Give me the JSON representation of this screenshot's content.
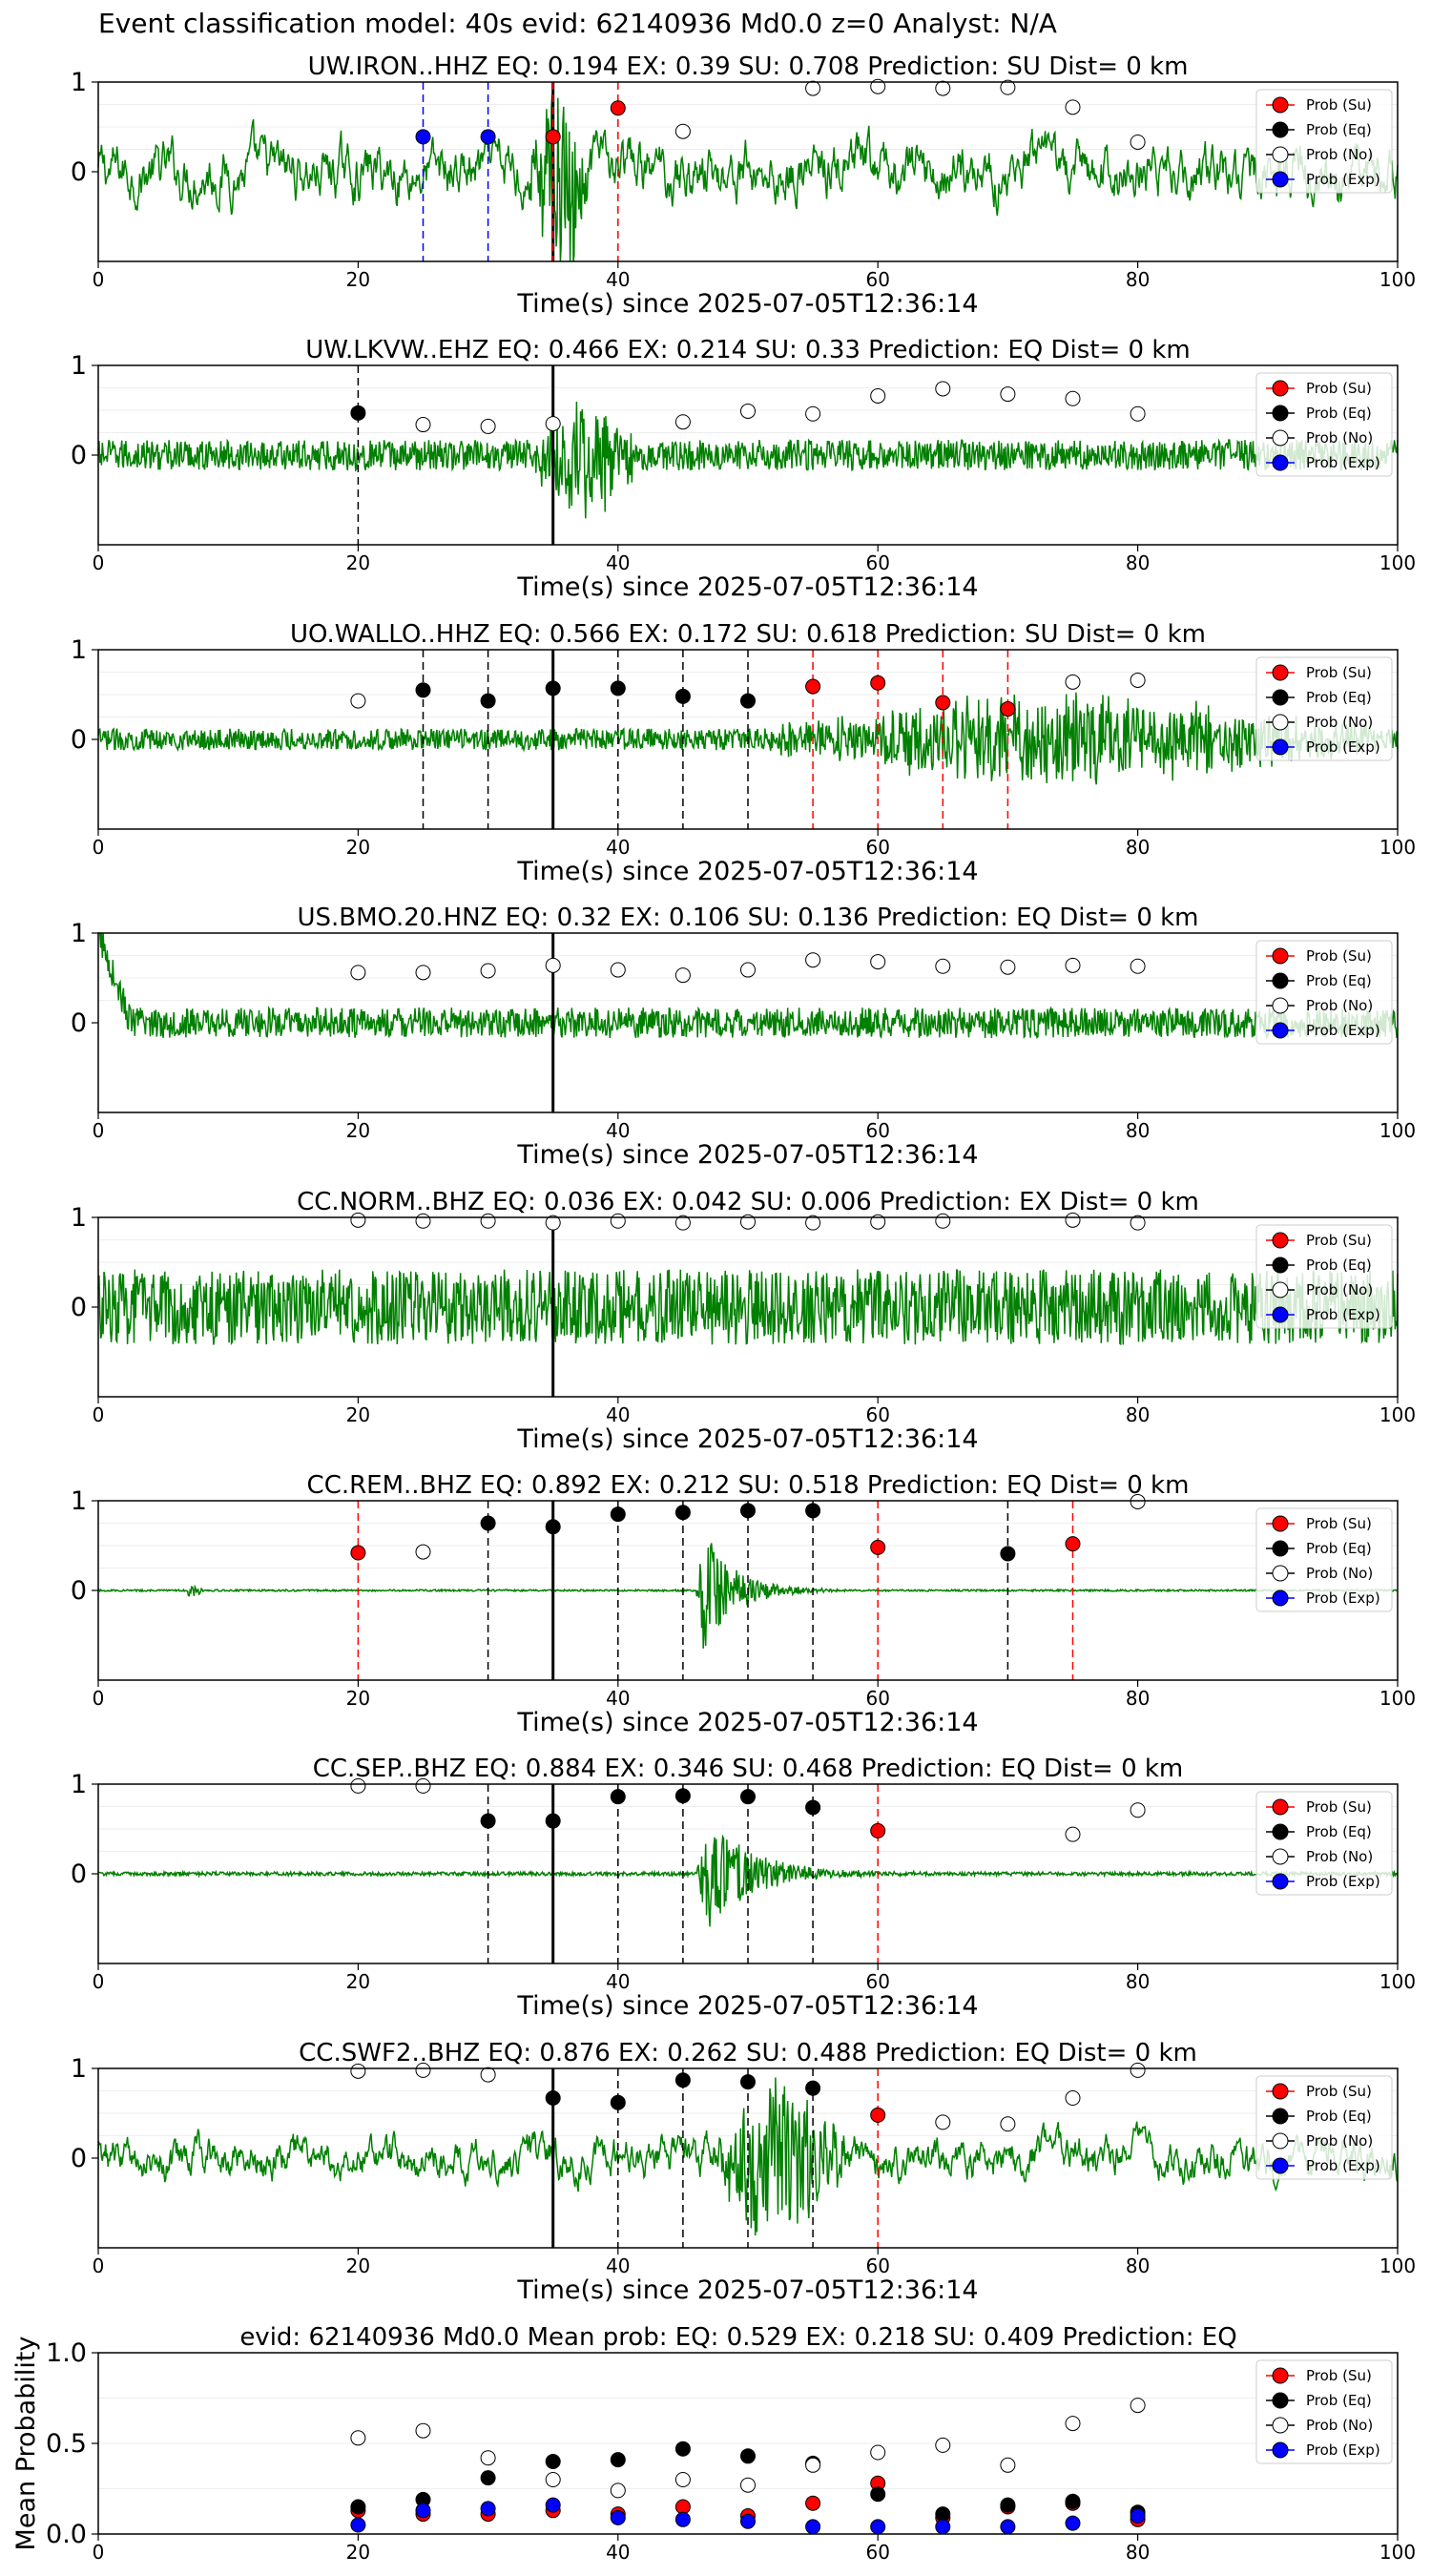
{
  "title": "Event classification model: 40s evid: 62140936 Md0.0 z=0 Analyst: N/A",
  "colors": {
    "waveform": "#008000",
    "su": "#ff0000",
    "eq": "#000000",
    "no": "#ffffff",
    "exp": "#0000ff",
    "pick_line": "#000000"
  },
  "legend": {
    "entries": [
      "Prob (Su)",
      "Prob (Eq)",
      "Prob (No)",
      "Prob (Exp)"
    ],
    "placement": "upper-right"
  },
  "waveform_xlabel": "Time(s) since 2025-07-05T12:36:14",
  "chart_data": [
    {
      "type": "line",
      "title": "UW.IRON..HHZ   EQ: 0.194  EX: 0.39  SU: 0.708   Prediction: SU    Dist= 0 km",
      "xlabel": "Time(s) since 2025-07-05T12:36:14",
      "xlim": [
        0,
        100
      ],
      "ylim": [
        -1,
        1
      ],
      "xticks": [
        "0",
        "20",
        "40",
        "60",
        "80",
        "100"
      ],
      "yticks": [
        "1",
        "0"
      ],
      "pick_time": 35,
      "classes": [
        {
          "t": 25,
          "cls": "exp",
          "p": 0.39
        },
        {
          "t": 30,
          "cls": "exp",
          "p": 0.39
        },
        {
          "t": 35,
          "cls": "su",
          "p": 0.39
        },
        {
          "t": 40,
          "cls": "su",
          "p": 0.71
        },
        {
          "t": 45,
          "cls": "no",
          "p": 0.45
        },
        {
          "t": 55,
          "cls": "no",
          "p": 0.93
        },
        {
          "t": 60,
          "cls": "no",
          "p": 0.95
        },
        {
          "t": 65,
          "cls": "no",
          "p": 0.93
        },
        {
          "t": 70,
          "cls": "no",
          "p": 0.94
        },
        {
          "t": 75,
          "cls": "no",
          "p": 0.72
        },
        {
          "t": 80,
          "cls": "no",
          "p": 0.33
        }
      ],
      "waveform": {
        "style": "lowfreq",
        "amp": 0.28,
        "burst": [
          33,
          38
        ],
        "burstAmp": 0.9,
        "burstMaxAbs": 0
      }
    },
    {
      "type": "line",
      "title": "UW.LKVW..EHZ   EQ: 0.466  EX: 0.214  SU: 0.33   Prediction: EQ    Dist= 0 km",
      "xlabel": "Time(s) since 2025-07-05T12:36:14",
      "xlim": [
        0,
        100
      ],
      "ylim": [
        -1,
        1
      ],
      "xticks": [
        "0",
        "20",
        "40",
        "60",
        "80",
        "100"
      ],
      "yticks": [
        "1",
        "0"
      ],
      "pick_time": 35,
      "classes": [
        {
          "t": 20,
          "cls": "eq",
          "p": 0.47
        },
        {
          "t": 25,
          "cls": "no",
          "p": 0.34
        },
        {
          "t": 30,
          "cls": "no",
          "p": 0.32
        },
        {
          "t": 35,
          "cls": "no",
          "p": 0.35
        },
        {
          "t": 45,
          "cls": "no",
          "p": 0.37
        },
        {
          "t": 50,
          "cls": "no",
          "p": 0.49
        },
        {
          "t": 55,
          "cls": "no",
          "p": 0.46
        },
        {
          "t": 60,
          "cls": "no",
          "p": 0.66
        },
        {
          "t": 65,
          "cls": "no",
          "p": 0.74
        },
        {
          "t": 70,
          "cls": "no",
          "p": 0.68
        },
        {
          "t": 75,
          "cls": "no",
          "p": 0.63
        },
        {
          "t": 80,
          "cls": "no",
          "p": 0.46
        }
      ],
      "waveform": {
        "style": "noisy",
        "amp": 0.17,
        "burst": [
          33,
          42
        ],
        "burstAmp": 0.6,
        "burstMaxAbs": 0
      }
    },
    {
      "type": "line",
      "title": "UO.WALLO..HHZ   EQ: 0.566  EX: 0.172  SU: 0.618   Prediction: SU    Dist= 0 km",
      "xlabel": "Time(s) since 2025-07-05T12:36:14",
      "xlim": [
        0,
        100
      ],
      "ylim": [
        -1,
        1
      ],
      "xticks": [
        "0",
        "20",
        "40",
        "60",
        "80",
        "100"
      ],
      "yticks": [
        "1",
        "0"
      ],
      "pick_time": 35,
      "classes": [
        {
          "t": 20,
          "cls": "no",
          "p": 0.43
        },
        {
          "t": 25,
          "cls": "eq",
          "p": 0.55
        },
        {
          "t": 30,
          "cls": "eq",
          "p": 0.43
        },
        {
          "t": 35,
          "cls": "eq",
          "p": 0.57
        },
        {
          "t": 40,
          "cls": "eq",
          "p": 0.57
        },
        {
          "t": 45,
          "cls": "eq",
          "p": 0.48
        },
        {
          "t": 50,
          "cls": "eq",
          "p": 0.43
        },
        {
          "t": 55,
          "cls": "su",
          "p": 0.59
        },
        {
          "t": 60,
          "cls": "su",
          "p": 0.63
        },
        {
          "t": 65,
          "cls": "su",
          "p": 0.41
        },
        {
          "t": 70,
          "cls": "su",
          "p": 0.34
        },
        {
          "t": 75,
          "cls": "no",
          "p": 0.64
        },
        {
          "t": 80,
          "cls": "no",
          "p": 0.66
        }
      ],
      "waveform": {
        "style": "noisy",
        "amp": 0.12,
        "burst": [
          50,
          100
        ],
        "burstAmp": 0.45,
        "burstMaxAbs": 0
      }
    },
    {
      "type": "line",
      "title": "US.BMO.20.HNZ   EQ: 0.32  EX: 0.106  SU: 0.136   Prediction: EQ    Dist= 0 km",
      "xlabel": "Time(s) since 2025-07-05T12:36:14",
      "xlim": [
        0,
        100
      ],
      "ylim": [
        -1,
        1
      ],
      "xticks": [
        "0",
        "20",
        "40",
        "60",
        "80",
        "100"
      ],
      "yticks": [
        "1",
        "0"
      ],
      "pick_time": 35,
      "classes": [
        {
          "t": 20,
          "cls": "no",
          "p": 0.56
        },
        {
          "t": 25,
          "cls": "no",
          "p": 0.56
        },
        {
          "t": 30,
          "cls": "no",
          "p": 0.58
        },
        {
          "t": 35,
          "cls": "no",
          "p": 0.64
        },
        {
          "t": 40,
          "cls": "no",
          "p": 0.59
        },
        {
          "t": 45,
          "cls": "no",
          "p": 0.53
        },
        {
          "t": 50,
          "cls": "no",
          "p": 0.59
        },
        {
          "t": 55,
          "cls": "no",
          "p": 0.7
        },
        {
          "t": 60,
          "cls": "no",
          "p": 0.68
        },
        {
          "t": 65,
          "cls": "no",
          "p": 0.63
        },
        {
          "t": 70,
          "cls": "no",
          "p": 0.62
        },
        {
          "t": 75,
          "cls": "no",
          "p": 0.64
        },
        {
          "t": 80,
          "cls": "no",
          "p": 0.63
        }
      ],
      "waveform": {
        "style": "noisy",
        "amp": 0.17,
        "burst": [
          0,
          0
        ],
        "burstAmp": 0,
        "burstMaxAbs": 0,
        "startSpike": true
      }
    },
    {
      "type": "line",
      "title": "CC.NORM..BHZ   EQ: 0.036  EX: 0.042  SU: 0.006   Prediction: EX    Dist= 0 km",
      "xlabel": "Time(s) since 2025-07-05T12:36:14",
      "xlim": [
        0,
        100
      ],
      "ylim": [
        -1,
        1
      ],
      "xticks": [
        "0",
        "20",
        "40",
        "60",
        "80",
        "100"
      ],
      "yticks": [
        "1",
        "0"
      ],
      "pick_time": 35,
      "classes": [
        {
          "t": 20,
          "cls": "no",
          "p": 0.97
        },
        {
          "t": 25,
          "cls": "no",
          "p": 0.96
        },
        {
          "t": 30,
          "cls": "no",
          "p": 0.96
        },
        {
          "t": 35,
          "cls": "no",
          "p": 0.94
        },
        {
          "t": 40,
          "cls": "no",
          "p": 0.96
        },
        {
          "t": 45,
          "cls": "no",
          "p": 0.94
        },
        {
          "t": 50,
          "cls": "no",
          "p": 0.95
        },
        {
          "t": 55,
          "cls": "no",
          "p": 0.94
        },
        {
          "t": 60,
          "cls": "no",
          "p": 0.95
        },
        {
          "t": 65,
          "cls": "no",
          "p": 0.96
        },
        {
          "t": 75,
          "cls": "no",
          "p": 0.97
        },
        {
          "t": 80,
          "cls": "no",
          "p": 0.94
        }
      ],
      "waveform": {
        "style": "noisy",
        "amp": 0.42,
        "burst": [
          0,
          0
        ],
        "burstAmp": 0,
        "burstMaxAbs": 0
      }
    },
    {
      "type": "line",
      "title": "CC.REM..BHZ   EQ: 0.892  EX: 0.212  SU: 0.518   Prediction: EQ    Dist= 0 km",
      "xlabel": "Time(s) since 2025-07-05T12:36:14",
      "xlim": [
        0,
        100
      ],
      "ylim": [
        -1,
        1
      ],
      "xticks": [
        "0",
        "20",
        "40",
        "60",
        "80",
        "100"
      ],
      "yticks": [
        "1",
        "0"
      ],
      "pick_time": 35,
      "classes": [
        {
          "t": 20,
          "cls": "su",
          "p": 0.42
        },
        {
          "t": 25,
          "cls": "no",
          "p": 0.43
        },
        {
          "t": 30,
          "cls": "eq",
          "p": 0.75
        },
        {
          "t": 35,
          "cls": "eq",
          "p": 0.71
        },
        {
          "t": 40,
          "cls": "eq",
          "p": 0.85
        },
        {
          "t": 45,
          "cls": "eq",
          "p": 0.87
        },
        {
          "t": 50,
          "cls": "eq",
          "p": 0.89
        },
        {
          "t": 55,
          "cls": "eq",
          "p": 0.89
        },
        {
          "t": 60,
          "cls": "su",
          "p": 0.48
        },
        {
          "t": 70,
          "cls": "eq",
          "p": 0.41
        },
        {
          "t": 75,
          "cls": "su",
          "p": 0.52
        },
        {
          "t": 80,
          "cls": "no",
          "p": 0.99
        }
      ],
      "waveform": {
        "style": "event",
        "amp": 0.01,
        "burst": [
          46,
          58
        ],
        "burstAmp": 0.9,
        "burstMaxAbs": 0,
        "preEvent": 7.5
      }
    },
    {
      "type": "line",
      "title": "CC.SEP..BHZ   EQ: 0.884  EX: 0.346  SU: 0.468   Prediction: EQ    Dist= 0 km",
      "xlabel": "Time(s) since 2025-07-05T12:36:14",
      "xlim": [
        0,
        100
      ],
      "ylim": [
        -1,
        1
      ],
      "xticks": [
        "0",
        "20",
        "40",
        "60",
        "80",
        "100"
      ],
      "yticks": [
        "1",
        "0"
      ],
      "pick_time": 35,
      "classes": [
        {
          "t": 20,
          "cls": "no",
          "p": 0.98
        },
        {
          "t": 25,
          "cls": "no",
          "p": 0.98
        },
        {
          "t": 30,
          "cls": "eq",
          "p": 0.59
        },
        {
          "t": 35,
          "cls": "eq",
          "p": 0.59
        },
        {
          "t": 40,
          "cls": "eq",
          "p": 0.86
        },
        {
          "t": 45,
          "cls": "eq",
          "p": 0.87
        },
        {
          "t": 50,
          "cls": "eq",
          "p": 0.86
        },
        {
          "t": 55,
          "cls": "eq",
          "p": 0.74
        },
        {
          "t": 60,
          "cls": "su",
          "p": 0.48
        },
        {
          "t": 75,
          "cls": "no",
          "p": 0.44
        },
        {
          "t": 80,
          "cls": "no",
          "p": 0.71
        }
      ],
      "waveform": {
        "style": "event",
        "amp": 0.02,
        "burst": [
          46,
          64
        ],
        "burstAmp": 0.8,
        "burstMaxAbs": 0
      }
    },
    {
      "type": "line",
      "title": "CC.SWF2..BHZ   EQ: 0.876  EX: 0.262  SU: 0.488   Prediction: EQ    Dist= 0 km",
      "xlabel": "Time(s) since 2025-07-05T12:36:14",
      "xlim": [
        0,
        100
      ],
      "ylim": [
        -1,
        1
      ],
      "xticks": [
        "0",
        "20",
        "40",
        "60",
        "80",
        "100"
      ],
      "yticks": [
        "1",
        "0"
      ],
      "pick_time": 35,
      "classes": [
        {
          "t": 20,
          "cls": "no",
          "p": 0.97
        },
        {
          "t": 25,
          "cls": "no",
          "p": 0.98
        },
        {
          "t": 30,
          "cls": "no",
          "p": 0.93
        },
        {
          "t": 35,
          "cls": "eq",
          "p": 0.67
        },
        {
          "t": 40,
          "cls": "eq",
          "p": 0.62
        },
        {
          "t": 45,
          "cls": "eq",
          "p": 0.87
        },
        {
          "t": 50,
          "cls": "eq",
          "p": 0.85
        },
        {
          "t": 55,
          "cls": "eq",
          "p": 0.78
        },
        {
          "t": 60,
          "cls": "su",
          "p": 0.48
        },
        {
          "t": 65,
          "cls": "no",
          "p": 0.4
        },
        {
          "t": 70,
          "cls": "no",
          "p": 0.38
        },
        {
          "t": 75,
          "cls": "no",
          "p": 0.67
        },
        {
          "t": 80,
          "cls": "no",
          "p": 0.98
        }
      ],
      "waveform": {
        "style": "lowfreq",
        "amp": 0.2,
        "burst": [
          47,
          58
        ],
        "burstAmp": 0.75,
        "burstMaxAbs": 0
      }
    },
    {
      "type": "scatter",
      "title": "evid: 62140936  Md0.0   Mean prob:   EQ: 0.529  EX: 0.218  SU: 0.409   Prediction: EQ",
      "ylabel": "Mean Probability",
      "xlim": [
        0,
        100
      ],
      "ylim": [
        0,
        1
      ],
      "xticks": [
        "0",
        "20",
        "40",
        "60",
        "80",
        "100"
      ],
      "yticks": [
        "0.0",
        "0.5",
        "1.0"
      ],
      "x": [
        20,
        25,
        30,
        35,
        40,
        45,
        50,
        55,
        60,
        65,
        70,
        75,
        80
      ],
      "series": [
        {
          "name": "Prob (Su)",
          "cls": "su",
          "values": [
            0.13,
            0.11,
            0.11,
            0.13,
            0.11,
            0.15,
            0.1,
            0.17,
            0.28,
            0.09,
            0.15,
            0.17,
            0.08
          ]
        },
        {
          "name": "Prob (Eq)",
          "cls": "eq",
          "values": [
            0.15,
            0.19,
            0.31,
            0.4,
            0.41,
            0.47,
            0.43,
            0.39,
            0.22,
            0.11,
            0.16,
            0.18,
            0.12
          ]
        },
        {
          "name": "Prob (No)",
          "cls": "no",
          "values": [
            0.53,
            0.57,
            0.42,
            0.3,
            0.24,
            0.3,
            0.27,
            0.38,
            0.45,
            0.49,
            0.38,
            0.61,
            0.71
          ]
        },
        {
          "name": "Prob (Exp)",
          "cls": "exp",
          "values": [
            0.05,
            0.13,
            0.14,
            0.16,
            0.09,
            0.08,
            0.07,
            0.04,
            0.04,
            0.04,
            0.04,
            0.06,
            0.1
          ]
        }
      ]
    }
  ]
}
